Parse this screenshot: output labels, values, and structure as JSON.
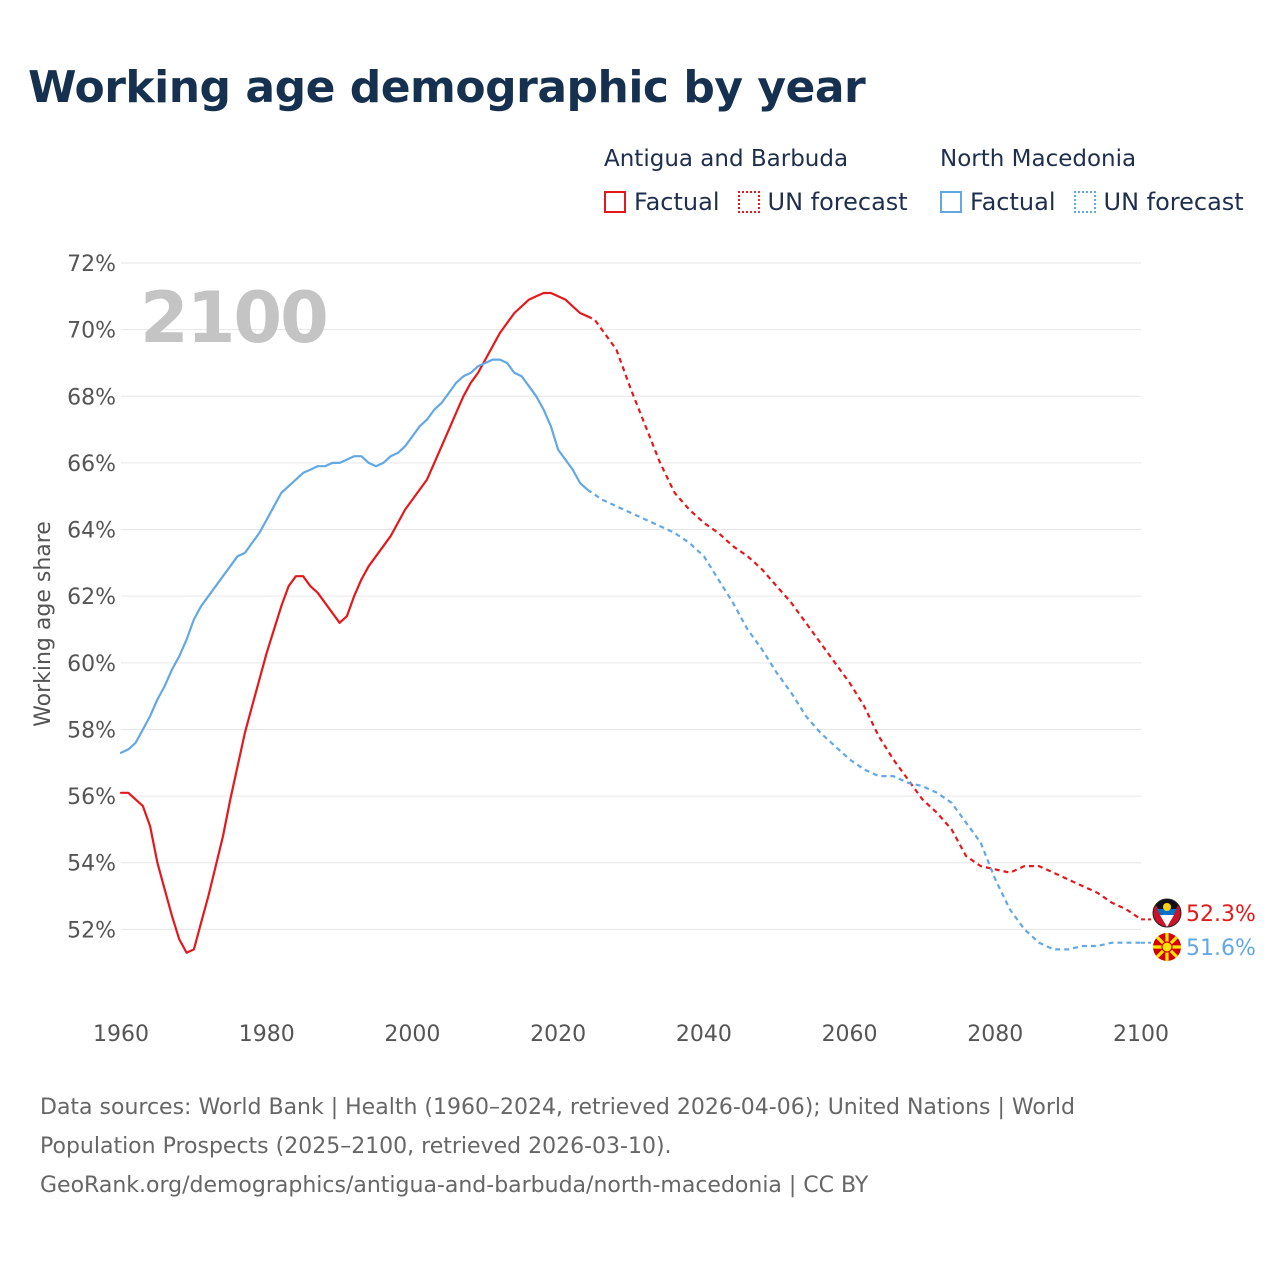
{
  "title": "Working age demographic by year",
  "legend": {
    "groups": [
      {
        "name": "Antigua and Barbuda",
        "color": "#e3191c",
        "factual_label": "Factual",
        "forecast_label": "UN forecast"
      },
      {
        "name": "North Macedonia",
        "color": "#62a8e5",
        "factual_label": "Factual",
        "forecast_label": "UN forecast"
      }
    ]
  },
  "year_watermark": "2100",
  "end_labels": {
    "antigua": "52.3%",
    "macedonia": "51.6%"
  },
  "footer": {
    "line1": "Data sources: World Bank | Health (1960–2024, retrieved 2026-04-06); United Nations | World",
    "line2": "Population Prospects (2025–2100, retrieved 2026-03-10).",
    "line3": "GeoRank.org/demographics/antigua-and-barbuda/north-macedonia | CC BY"
  },
  "chart_data": {
    "type": "line",
    "title": "Working age demographic by year",
    "xlabel": "",
    "ylabel": "Working age share",
    "xlim": [
      1960,
      2100
    ],
    "ylim": [
      50.0,
      72.0
    ],
    "x_ticks": [
      1960,
      1980,
      2000,
      2020,
      2040,
      2060,
      2080,
      2100
    ],
    "x_tick_labels": [
      "1960",
      "1980",
      "2000",
      "2020",
      "2040",
      "2060",
      "2080",
      "2100"
    ],
    "y_ticks": [
      52,
      54,
      56,
      58,
      60,
      62,
      64,
      66,
      68,
      70,
      72
    ],
    "y_tick_labels": [
      "52%",
      "54%",
      "56%",
      "58%",
      "60%",
      "62%",
      "64%",
      "66%",
      "68%",
      "70%",
      "72%"
    ],
    "grid": true,
    "legend_position": "top-right",
    "factual_end_year": 2024,
    "series": [
      {
        "name": "Antigua and Barbuda",
        "color": "#e3191c",
        "factual": [
          [
            1960,
            56.1
          ],
          [
            1961,
            56.1
          ],
          [
            1962,
            55.9
          ],
          [
            1963,
            55.7
          ],
          [
            1964,
            55.1
          ],
          [
            1965,
            54.0
          ],
          [
            1966,
            53.2
          ],
          [
            1967,
            52.4
          ],
          [
            1968,
            51.7
          ],
          [
            1969,
            51.3
          ],
          [
            1970,
            51.4
          ],
          [
            1971,
            52.2
          ],
          [
            1972,
            53.0
          ],
          [
            1973,
            53.9
          ],
          [
            1974,
            54.8
          ],
          [
            1975,
            55.9
          ],
          [
            1976,
            56.9
          ],
          [
            1977,
            57.9
          ],
          [
            1978,
            58.7
          ],
          [
            1979,
            59.5
          ],
          [
            1980,
            60.3
          ],
          [
            1981,
            61.0
          ],
          [
            1982,
            61.7
          ],
          [
            1983,
            62.3
          ],
          [
            1984,
            62.6
          ],
          [
            1985,
            62.6
          ],
          [
            1986,
            62.3
          ],
          [
            1987,
            62.1
          ],
          [
            1988,
            61.8
          ],
          [
            1989,
            61.5
          ],
          [
            1990,
            61.2
          ],
          [
            1991,
            61.4
          ],
          [
            1992,
            62.0
          ],
          [
            1993,
            62.5
          ],
          [
            1994,
            62.9
          ],
          [
            1995,
            63.2
          ],
          [
            1996,
            63.5
          ],
          [
            1997,
            63.8
          ],
          [
            1998,
            64.2
          ],
          [
            1999,
            64.6
          ],
          [
            2000,
            64.9
          ],
          [
            2001,
            65.2
          ],
          [
            2002,
            65.5
          ],
          [
            2003,
            66.0
          ],
          [
            2004,
            66.5
          ],
          [
            2005,
            67.0
          ],
          [
            2006,
            67.5
          ],
          [
            2007,
            68.0
          ],
          [
            2008,
            68.4
          ],
          [
            2009,
            68.7
          ],
          [
            2010,
            69.1
          ],
          [
            2011,
            69.5
          ],
          [
            2012,
            69.9
          ],
          [
            2013,
            70.2
          ],
          [
            2014,
            70.5
          ],
          [
            2015,
            70.7
          ],
          [
            2016,
            70.9
          ],
          [
            2017,
            71.0
          ],
          [
            2018,
            71.1
          ],
          [
            2019,
            71.1
          ],
          [
            2020,
            71.0
          ],
          [
            2021,
            70.9
          ],
          [
            2022,
            70.7
          ],
          [
            2023,
            70.5
          ],
          [
            2024,
            70.4
          ]
        ],
        "forecast": [
          [
            2024,
            70.4
          ],
          [
            2025,
            70.3
          ],
          [
            2026,
            70.0
          ],
          [
            2028,
            69.4
          ],
          [
            2030,
            68.2
          ],
          [
            2032,
            67.1
          ],
          [
            2034,
            66.0
          ],
          [
            2036,
            65.1
          ],
          [
            2038,
            64.6
          ],
          [
            2040,
            64.2
          ],
          [
            2042,
            63.9
          ],
          [
            2044,
            63.5
          ],
          [
            2046,
            63.2
          ],
          [
            2048,
            62.8
          ],
          [
            2050,
            62.3
          ],
          [
            2052,
            61.8
          ],
          [
            2054,
            61.2
          ],
          [
            2056,
            60.6
          ],
          [
            2058,
            60.0
          ],
          [
            2060,
            59.4
          ],
          [
            2062,
            58.7
          ],
          [
            2064,
            57.8
          ],
          [
            2066,
            57.1
          ],
          [
            2068,
            56.5
          ],
          [
            2070,
            55.9
          ],
          [
            2072,
            55.5
          ],
          [
            2074,
            55.0
          ],
          [
            2076,
            54.2
          ],
          [
            2078,
            53.9
          ],
          [
            2080,
            53.8
          ],
          [
            2082,
            53.7
          ],
          [
            2084,
            53.9
          ],
          [
            2086,
            53.9
          ],
          [
            2088,
            53.7
          ],
          [
            2090,
            53.5
          ],
          [
            2092,
            53.3
          ],
          [
            2094,
            53.1
          ],
          [
            2096,
            52.8
          ],
          [
            2098,
            52.6
          ],
          [
            2100,
            52.3
          ]
        ],
        "end_value": 52.3
      },
      {
        "name": "North Macedonia",
        "color": "#62a8e5",
        "factual": [
          [
            1960,
            57.3
          ],
          [
            1961,
            57.4
          ],
          [
            1962,
            57.6
          ],
          [
            1963,
            58.0
          ],
          [
            1964,
            58.4
          ],
          [
            1965,
            58.9
          ],
          [
            1966,
            59.3
          ],
          [
            1967,
            59.8
          ],
          [
            1968,
            60.2
          ],
          [
            1969,
            60.7
          ],
          [
            1970,
            61.3
          ],
          [
            1971,
            61.7
          ],
          [
            1972,
            62.0
          ],
          [
            1973,
            62.3
          ],
          [
            1974,
            62.6
          ],
          [
            1975,
            62.9
          ],
          [
            1976,
            63.2
          ],
          [
            1977,
            63.3
          ],
          [
            1978,
            63.6
          ],
          [
            1979,
            63.9
          ],
          [
            1980,
            64.3
          ],
          [
            1981,
            64.7
          ],
          [
            1982,
            65.1
          ],
          [
            1983,
            65.3
          ],
          [
            1984,
            65.5
          ],
          [
            1985,
            65.7
          ],
          [
            1986,
            65.8
          ],
          [
            1987,
            65.9
          ],
          [
            1988,
            65.9
          ],
          [
            1989,
            66.0
          ],
          [
            1990,
            66.0
          ],
          [
            1991,
            66.1
          ],
          [
            1992,
            66.2
          ],
          [
            1993,
            66.2
          ],
          [
            1994,
            66.0
          ],
          [
            1995,
            65.9
          ],
          [
            1996,
            66.0
          ],
          [
            1997,
            66.2
          ],
          [
            1998,
            66.3
          ],
          [
            1999,
            66.5
          ],
          [
            2000,
            66.8
          ],
          [
            2001,
            67.1
          ],
          [
            2002,
            67.3
          ],
          [
            2003,
            67.6
          ],
          [
            2004,
            67.8
          ],
          [
            2005,
            68.1
          ],
          [
            2006,
            68.4
          ],
          [
            2007,
            68.6
          ],
          [
            2008,
            68.7
          ],
          [
            2009,
            68.9
          ],
          [
            2010,
            69.0
          ],
          [
            2011,
            69.1
          ],
          [
            2012,
            69.1
          ],
          [
            2013,
            69.0
          ],
          [
            2014,
            68.7
          ],
          [
            2015,
            68.6
          ],
          [
            2016,
            68.3
          ],
          [
            2017,
            68.0
          ],
          [
            2018,
            67.6
          ],
          [
            2019,
            67.1
          ],
          [
            2020,
            66.4
          ],
          [
            2021,
            66.1
          ],
          [
            2022,
            65.8
          ],
          [
            2023,
            65.4
          ],
          [
            2024,
            65.2
          ]
        ],
        "forecast": [
          [
            2024,
            65.2
          ],
          [
            2026,
            64.9
          ],
          [
            2028,
            64.7
          ],
          [
            2030,
            64.5
          ],
          [
            2032,
            64.3
          ],
          [
            2034,
            64.1
          ],
          [
            2036,
            63.9
          ],
          [
            2038,
            63.6
          ],
          [
            2040,
            63.2
          ],
          [
            2042,
            62.5
          ],
          [
            2044,
            61.8
          ],
          [
            2046,
            61.0
          ],
          [
            2048,
            60.4
          ],
          [
            2050,
            59.7
          ],
          [
            2052,
            59.1
          ],
          [
            2054,
            58.4
          ],
          [
            2056,
            57.9
          ],
          [
            2058,
            57.5
          ],
          [
            2060,
            57.1
          ],
          [
            2062,
            56.8
          ],
          [
            2064,
            56.6
          ],
          [
            2066,
            56.6
          ],
          [
            2068,
            56.4
          ],
          [
            2070,
            56.3
          ],
          [
            2072,
            56.1
          ],
          [
            2074,
            55.8
          ],
          [
            2076,
            55.2
          ],
          [
            2078,
            54.6
          ],
          [
            2080,
            53.5
          ],
          [
            2082,
            52.6
          ],
          [
            2084,
            52.0
          ],
          [
            2086,
            51.6
          ],
          [
            2088,
            51.4
          ],
          [
            2090,
            51.4
          ],
          [
            2092,
            51.5
          ],
          [
            2094,
            51.5
          ],
          [
            2096,
            51.6
          ],
          [
            2098,
            51.6
          ],
          [
            2100,
            51.6
          ]
        ],
        "end_value": 51.6
      }
    ]
  }
}
